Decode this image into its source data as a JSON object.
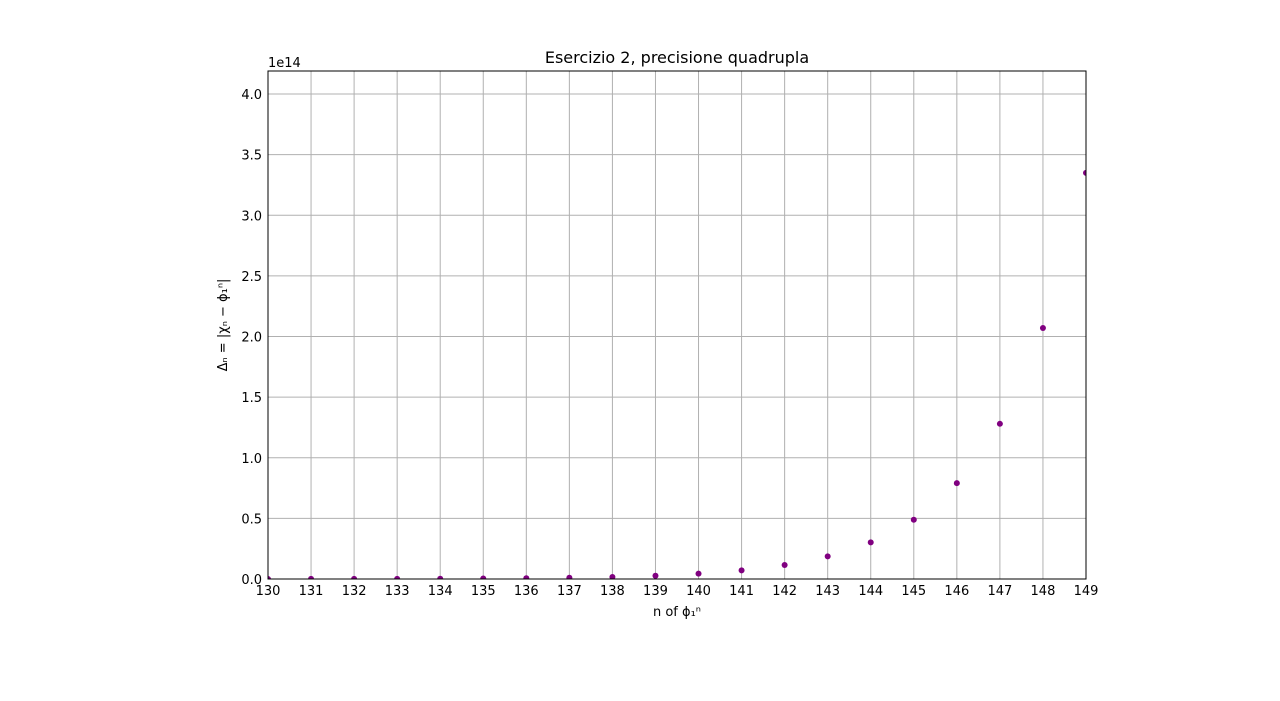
{
  "chart_data": {
    "type": "scatter",
    "title": "Esercizio 2, precisione quadrupla",
    "x_label": "n of ϕ₁ⁿ",
    "y_label": "Δₙ = |χₙ − ϕ₁ⁿ|",
    "y_offset_label": "1e14",
    "series": [
      {
        "color": "#800080",
        "x": [
          130,
          131,
          132,
          133,
          134,
          135,
          136,
          137,
          138,
          139,
          140,
          141,
          142,
          143,
          144,
          145,
          146,
          147,
          148,
          149
        ],
        "values": [
          0.0004,
          0.0006,
          0.001,
          0.0015,
          0.0025,
          0.004,
          0.0065,
          0.01,
          0.017,
          0.027,
          0.044,
          0.071,
          0.115,
          0.187,
          0.302,
          0.489,
          0.791,
          1.28,
          2.07,
          3.35
        ]
      }
    ],
    "xlim": [
      130,
      149
    ],
    "xticks": [
      130,
      131,
      132,
      133,
      134,
      135,
      136,
      137,
      138,
      139,
      140,
      141,
      142,
      143,
      144,
      145,
      146,
      147,
      148,
      149
    ],
    "ylim": [
      0,
      4.19
    ],
    "yticks": [
      {
        "value": 0,
        "label": "0.0"
      },
      0.5,
      {
        "value": 1,
        "label": "1.0"
      },
      1.5,
      {
        "value": 2,
        "label": "2.0"
      },
      2.5,
      {
        "value": 3,
        "label": "3.0"
      },
      3.5,
      {
        "value": 4,
        "label": "4.0"
      }
    ],
    "grid": true
  }
}
